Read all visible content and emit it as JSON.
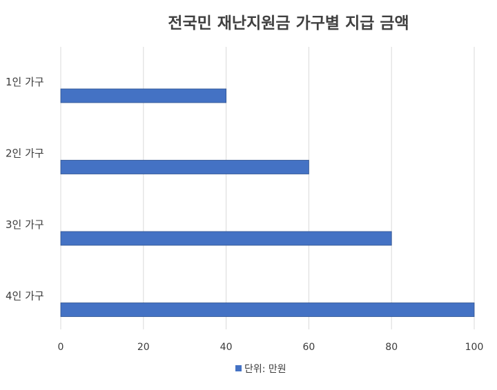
{
  "chart_data": {
    "type": "bar",
    "orientation": "horizontal",
    "title": "전국민 재난지원금 가구별 지급 금액",
    "categories": [
      "1인 가구",
      "2인 가구",
      "3인 가구",
      "4인 가구"
    ],
    "series": [
      {
        "name": "단위: 만원",
        "values": [
          40,
          60,
          80,
          100
        ],
        "color": "#4472C4"
      }
    ],
    "xlim": [
      0,
      100
    ],
    "x_ticks": [
      0,
      20,
      40,
      60,
      80,
      100
    ],
    "grid": true,
    "legend_position": "bottom"
  }
}
